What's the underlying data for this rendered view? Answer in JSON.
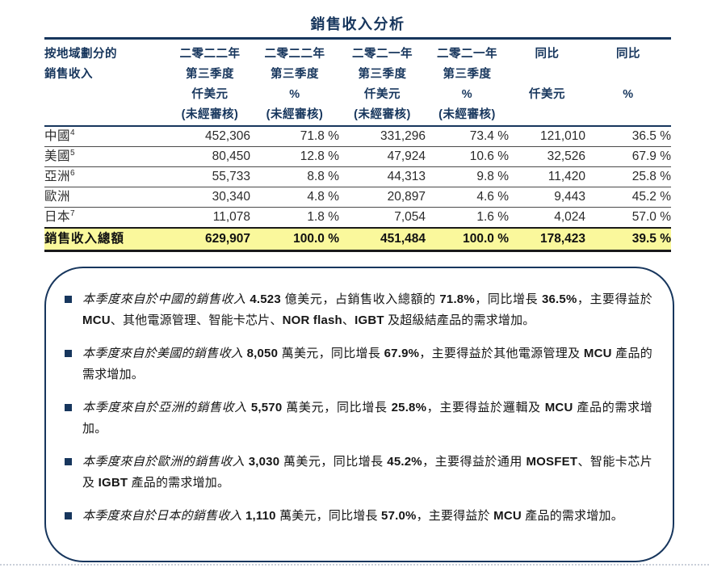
{
  "title": "銷售收入分析",
  "colors": {
    "accent_navy": "#17365D",
    "total_row_highlight": "#FAF89C",
    "body_text": "#2b2b2b",
    "bottom_rule": "#c9cfd9"
  },
  "table": {
    "row_header": {
      "lines": [
        "按地域劃分的",
        "銷售收入"
      ]
    },
    "columns": [
      {
        "lines": [
          "二零二二年",
          "第三季度",
          "仟美元",
          "(未經審核)"
        ]
      },
      {
        "lines": [
          "二零二二年",
          "第三季度",
          "%",
          "(未經審核)"
        ]
      },
      {
        "lines": [
          "二零二一年",
          "第三季度",
          "仟美元",
          "(未經審核)"
        ]
      },
      {
        "lines": [
          "二零二一年",
          "第三季度",
          "%",
          "(未經審核)"
        ]
      },
      {
        "lines": [
          "同比",
          "",
          "仟美元",
          ""
        ]
      },
      {
        "lines": [
          "同比",
          "",
          "%",
          ""
        ]
      }
    ],
    "rows": [
      {
        "label": "中國",
        "sup": "4",
        "values": [
          "452,306",
          "71.8 %",
          "331,296",
          "73.4 %",
          "121,010",
          "36.5 %"
        ]
      },
      {
        "label": "美國",
        "sup": "5",
        "values": [
          "80,450",
          "12.8 %",
          "47,924",
          "10.6 %",
          "32,526",
          "67.9 %"
        ]
      },
      {
        "label": "亞洲",
        "sup": "6",
        "values": [
          "55,733",
          "8.8 %",
          "44,313",
          "9.8 %",
          "11,420",
          "25.8 %"
        ]
      },
      {
        "label": "歐洲",
        "sup": "",
        "values": [
          "30,340",
          "4.8 %",
          "20,897",
          "4.6 %",
          "9,443",
          "45.2 %"
        ]
      },
      {
        "label": "日本",
        "sup": "7",
        "values": [
          "11,078",
          "1.8 %",
          "7,054",
          "1.6 %",
          "4,024",
          "57.0 %"
        ]
      }
    ],
    "total": {
      "label": "銷售收入總額",
      "values": [
        "629,907",
        "100.0 %",
        "451,484",
        "100.0 %",
        "178,423",
        "39.5 %"
      ]
    }
  },
  "notes": {
    "bullets": [
      {
        "segments": [
          {
            "style": "lead",
            "text": "本季度來自於中國的銷售收入 "
          },
          {
            "style": "num",
            "text": "4.523"
          },
          {
            "style": "text",
            "text": " 億美元，占銷售收入總額的 "
          },
          {
            "style": "num",
            "text": "71.8%"
          },
          {
            "style": "text",
            "text": "，同比增長 "
          },
          {
            "style": "num",
            "text": "36.5%"
          },
          {
            "style": "text",
            "text": "，主要得益於 "
          },
          {
            "style": "latin",
            "text": "MCU"
          },
          {
            "style": "text",
            "text": "、其他電源管理、智能卡芯片、"
          },
          {
            "style": "latin",
            "text": "NOR flash"
          },
          {
            "style": "text",
            "text": "、"
          },
          {
            "style": "latin",
            "text": "IGBT"
          },
          {
            "style": "text",
            "text": " 及超級結產品的需求增加。"
          }
        ]
      },
      {
        "segments": [
          {
            "style": "lead",
            "text": "本季度來自於美國的銷售收入 "
          },
          {
            "style": "num",
            "text": "8,050"
          },
          {
            "style": "text",
            "text": " 萬美元，同比增長 "
          },
          {
            "style": "num",
            "text": "67.9%"
          },
          {
            "style": "text",
            "text": "，主要得益於其他電源管理及 "
          },
          {
            "style": "latin",
            "text": "MCU"
          },
          {
            "style": "text",
            "text": " 產品的需求增加。"
          }
        ]
      },
      {
        "segments": [
          {
            "style": "lead",
            "text": "本季度來自於亞洲的銷售收入 "
          },
          {
            "style": "num",
            "text": "5,570"
          },
          {
            "style": "text",
            "text": " 萬美元，同比增長 "
          },
          {
            "style": "num",
            "text": "25.8%"
          },
          {
            "style": "text",
            "text": "，主要得益於邏輯及 "
          },
          {
            "style": "latin",
            "text": "MCU"
          },
          {
            "style": "text",
            "text": " 產品的需求增加。"
          }
        ]
      },
      {
        "segments": [
          {
            "style": "lead",
            "text": "本季度來自於歐洲的銷售收入 "
          },
          {
            "style": "num",
            "text": "3,030"
          },
          {
            "style": "text",
            "text": " 萬美元，同比增長 "
          },
          {
            "style": "num",
            "text": "45.2%"
          },
          {
            "style": "text",
            "text": "，主要得益於通用 "
          },
          {
            "style": "latin",
            "text": "MOSFET"
          },
          {
            "style": "text",
            "text": "、智能卡芯片及 "
          },
          {
            "style": "latin",
            "text": "IGBT"
          },
          {
            "style": "text",
            "text": " 產品的需求增加。"
          }
        ]
      },
      {
        "segments": [
          {
            "style": "lead",
            "text": "本季度來自於日本的銷售收入 "
          },
          {
            "style": "num",
            "text": "1,110"
          },
          {
            "style": "text",
            "text": " 萬美元，同比增長 "
          },
          {
            "style": "num",
            "text": "57.0%"
          },
          {
            "style": "text",
            "text": "，主要得益於 "
          },
          {
            "style": "latin",
            "text": "MCU"
          },
          {
            "style": "text",
            "text": " 產品的需求增加。"
          }
        ]
      }
    ]
  }
}
